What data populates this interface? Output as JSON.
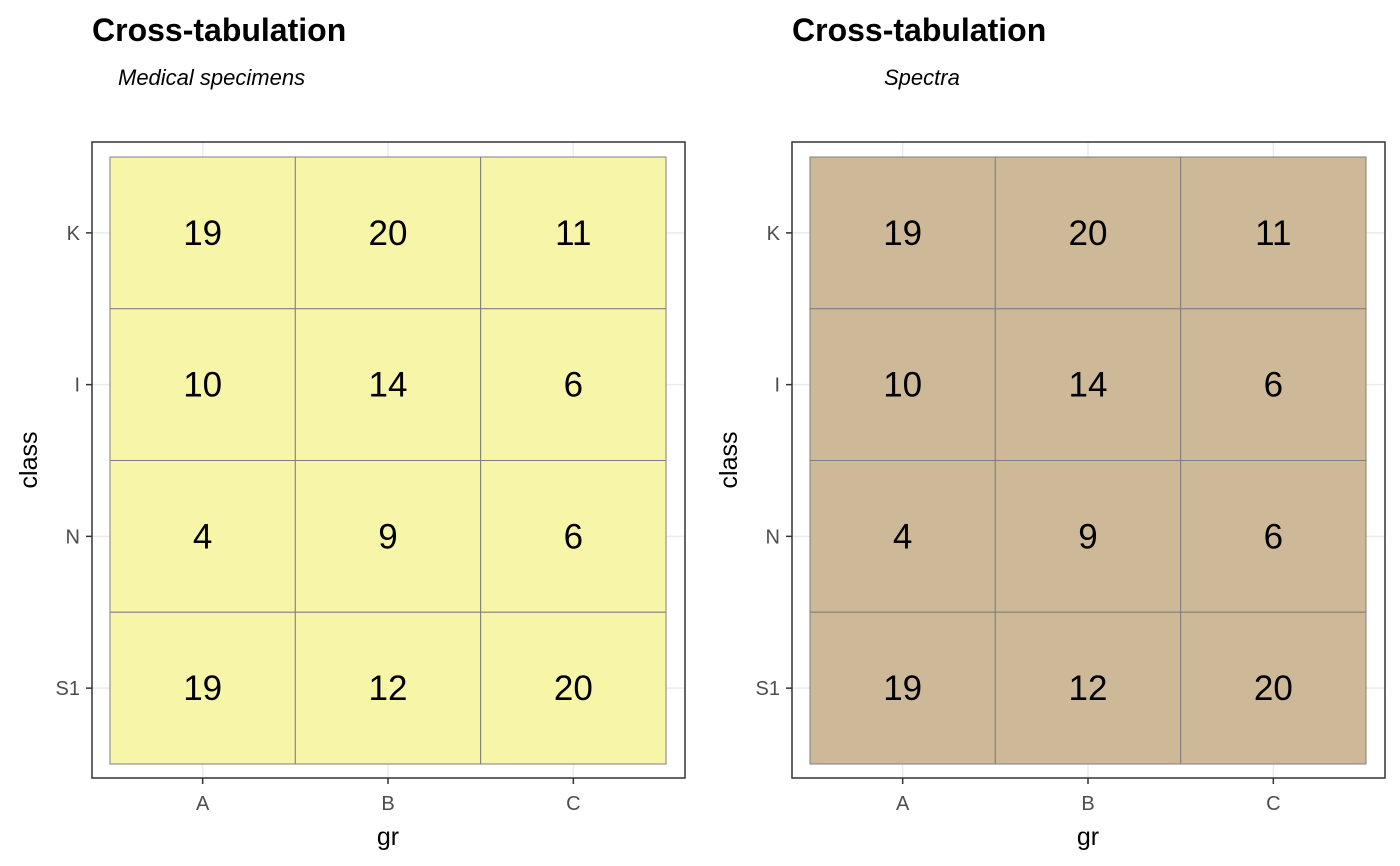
{
  "chart_data": [
    {
      "type": "heatmap",
      "title": "Cross-tabulation",
      "subtitle": "Medical specimens",
      "xlabel": "gr",
      "ylabel": "class",
      "x_categories": [
        "A",
        "B",
        "C"
      ],
      "y_categories": [
        "K",
        "I",
        "N",
        "S1"
      ],
      "values": [
        [
          19,
          20,
          11
        ],
        [
          10,
          14,
          6
        ],
        [
          4,
          9,
          6
        ],
        [
          19,
          12,
          20
        ]
      ],
      "fill_color": "#f7f5a8",
      "grid": true,
      "legend": "none"
    },
    {
      "type": "heatmap",
      "title": "Cross-tabulation",
      "subtitle": "Spectra",
      "xlabel": "gr",
      "ylabel": "class",
      "x_categories": [
        "A",
        "B",
        "C"
      ],
      "y_categories": [
        "K",
        "I",
        "N",
        "S1"
      ],
      "values": [
        [
          19,
          20,
          11
        ],
        [
          10,
          14,
          6
        ],
        [
          4,
          9,
          6
        ],
        [
          19,
          12,
          20
        ]
      ],
      "fill_color": "#cdb998",
      "grid": true,
      "legend": "none"
    }
  ],
  "colors": {
    "panel_border": "#333333",
    "cell_border": "#7f7f7f",
    "gridline": "#ebebeb",
    "tick": "#333333"
  }
}
